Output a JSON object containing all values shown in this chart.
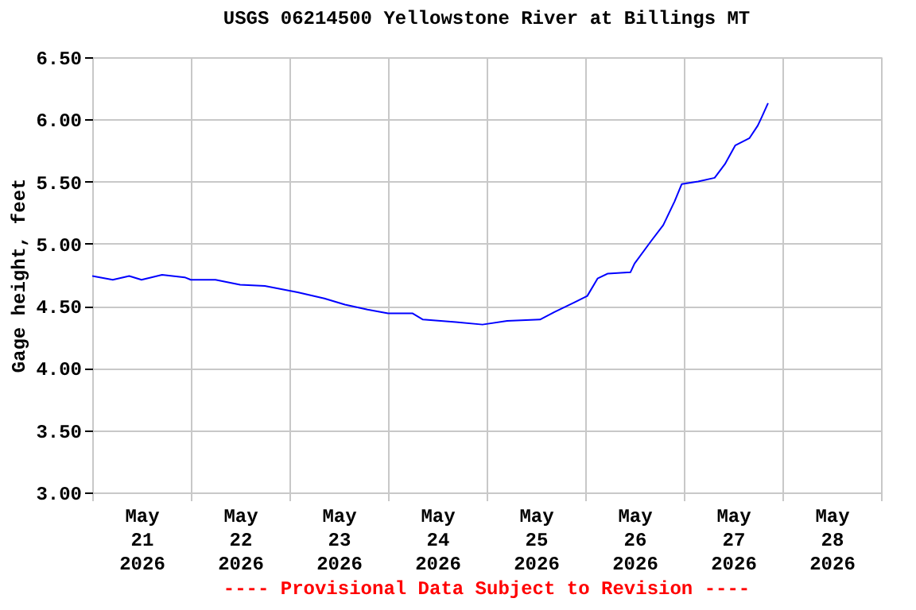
{
  "chart_data": {
    "type": "line",
    "title": "USGS 06214500 Yellowstone River at Billings MT",
    "ylabel": "Gage height, feet",
    "x": [
      "2026-05-21T00:00",
      "2026-05-21T05:00",
      "2026-05-21T09:00",
      "2026-05-21T12:00",
      "2026-05-21T17:00",
      "2026-05-21T22:30",
      "2026-05-22T00:00",
      "2026-05-22T06:00",
      "2026-05-22T12:00",
      "2026-05-22T18:00",
      "2026-05-23T02:00",
      "2026-05-23T08:30",
      "2026-05-23T13:30",
      "2026-05-23T19:00",
      "2026-05-24T00:00",
      "2026-05-24T06:00",
      "2026-05-24T08:30",
      "2026-05-24T16:30",
      "2026-05-24T23:00",
      "2026-05-25T05:00",
      "2026-05-25T13:00",
      "2026-05-25T16:30",
      "2026-05-25T21:30",
      "2026-05-26T00:30",
      "2026-05-26T03:00",
      "2026-05-26T05:30",
      "2026-05-26T11:00",
      "2026-05-26T12:00",
      "2026-05-26T16:00",
      "2026-05-26T19:00",
      "2026-05-26T21:45",
      "2026-05-26T23:30",
      "2026-05-27T03:30",
      "2026-05-27T07:30",
      "2026-05-27T10:00",
      "2026-05-27T12:30",
      "2026-05-27T16:00",
      "2026-05-27T18:00",
      "2026-05-27T19:00",
      "2026-05-27T20:30"
    ],
    "series": [
      {
        "color": "#0000ff",
        "values": [
          4.74,
          4.71,
          4.74,
          4.71,
          4.75,
          4.73,
          4.71,
          4.71,
          4.67,
          4.66,
          4.61,
          4.56,
          4.51,
          4.47,
          4.44,
          4.44,
          4.39,
          4.37,
          4.35,
          4.38,
          4.39,
          4.45,
          4.53,
          4.58,
          4.72,
          4.76,
          4.77,
          4.84,
          5.02,
          5.15,
          5.34,
          5.48,
          5.5,
          5.53,
          5.64,
          5.79,
          5.85,
          5.95,
          6.02,
          6.13
        ]
      }
    ],
    "xlim": [
      "2026-05-21T00:00",
      "2026-05-29T00:00"
    ],
    "xticks": [
      {
        "value": "2026-05-21T00:00",
        "label": null
      },
      {
        "value": "2026-05-21T12:00",
        "label": "May\n21\n2026"
      },
      {
        "value": "2026-05-22T00:00",
        "label": null
      },
      {
        "value": "2026-05-22T12:00",
        "label": "May\n22\n2026"
      },
      {
        "value": "2026-05-23T00:00",
        "label": null
      },
      {
        "value": "2026-05-23T12:00",
        "label": "May\n23\n2026"
      },
      {
        "value": "2026-05-24T00:00",
        "label": null
      },
      {
        "value": "2026-05-24T12:00",
        "label": "May\n24\n2026"
      },
      {
        "value": "2026-05-25T00:00",
        "label": null
      },
      {
        "value": "2026-05-25T12:00",
        "label": "May\n25\n2026"
      },
      {
        "value": "2026-05-26T00:00",
        "label": null
      },
      {
        "value": "2026-05-26T12:00",
        "label": "May\n26\n2026"
      },
      {
        "value": "2026-05-27T00:00",
        "label": null
      },
      {
        "value": "2026-05-27T12:00",
        "label": "May\n27\n2026"
      },
      {
        "value": "2026-05-28T00:00",
        "label": null
      },
      {
        "value": "2026-05-28T12:00",
        "label": "May\n28\n2026"
      },
      {
        "value": "2026-05-29T00:00",
        "label": null
      }
    ],
    "ylim": [
      3.0,
      6.5
    ],
    "yticks": [
      {
        "value": 3.0,
        "label": "3.00"
      },
      {
        "value": 3.5,
        "label": "3.50"
      },
      {
        "value": 4.0,
        "label": "4.00"
      },
      {
        "value": 4.5,
        "label": "4.50"
      },
      {
        "value": 5.0,
        "label": "5.00"
      },
      {
        "value": 5.5,
        "label": "5.50"
      },
      {
        "value": 6.0,
        "label": "6.00"
      },
      {
        "value": 6.5,
        "label": "6.50"
      }
    ],
    "grid": true,
    "legend": false,
    "marker": "none",
    "line_style": "solid",
    "annotations": [
      "---- Provisional Data Subject to Revision ----"
    ]
  }
}
